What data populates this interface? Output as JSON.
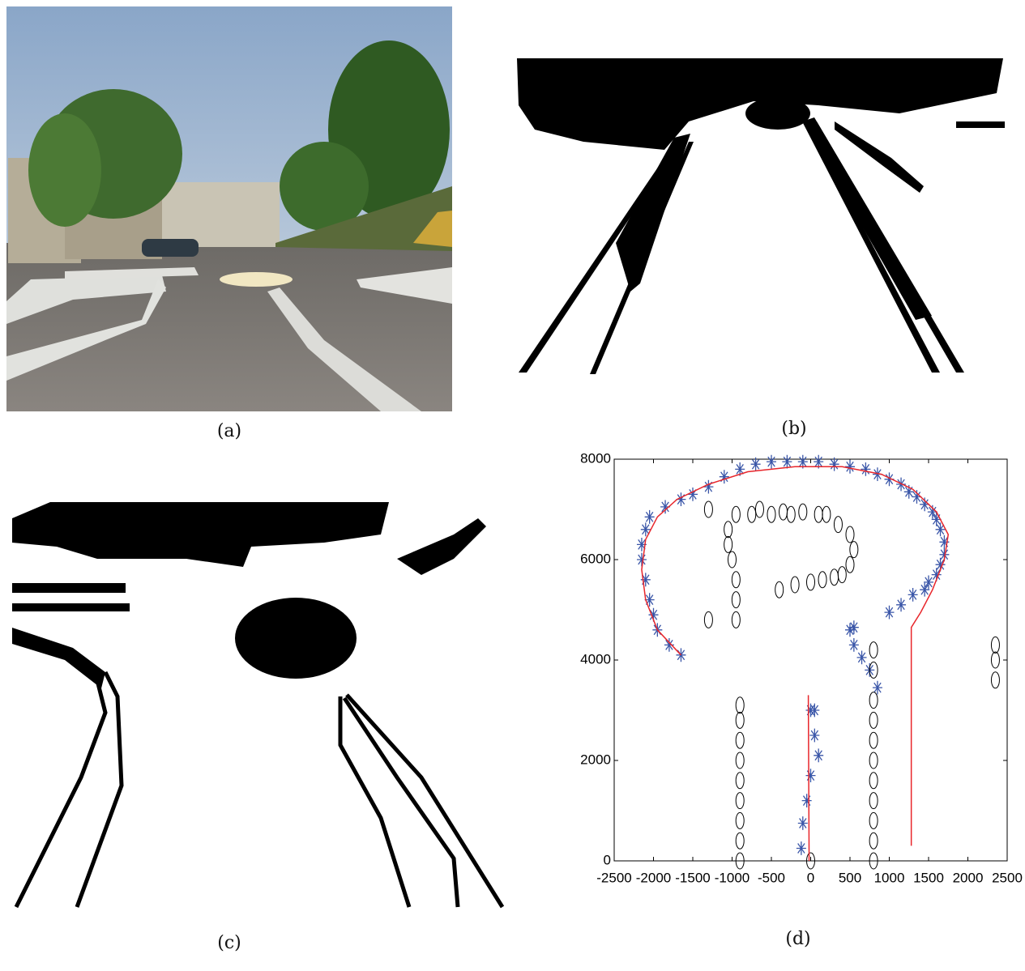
{
  "captions": [
    "(a)",
    "(b)",
    "(c)",
    "(d)"
  ],
  "chart_data": {
    "type": "scatter",
    "xlim": [
      -2500,
      2500
    ],
    "ylim": [
      0,
      8000
    ],
    "xticks": [
      -2500,
      -2000,
      -1500,
      -1000,
      -500,
      0,
      500,
      1000,
      1500,
      2000,
      2500
    ],
    "yticks": [
      0,
      2000,
      4000,
      6000,
      8000
    ],
    "series": [
      {
        "marker": "star",
        "color": "#3a56a8",
        "x": [
          -120,
          -100,
          -50,
          0,
          100,
          50,
          0,
          50,
          850,
          750,
          650,
          550,
          500,
          550,
          1000,
          1150,
          1300,
          1450,
          1500,
          1600,
          1650,
          1700,
          1700,
          1650,
          1600,
          1550,
          1450,
          1350,
          1250,
          1150,
          1000,
          850,
          700,
          500,
          300,
          100,
          -100,
          -300,
          -500,
          -700,
          -900,
          -1100,
          -1300,
          -1500,
          -1650,
          -1850,
          -2050,
          -2100,
          -2150,
          -2150,
          -2100,
          -2050,
          -2000,
          -1950,
          -1800,
          -1650
        ],
        "values": [
          250,
          750,
          1200,
          1700,
          2100,
          2500,
          3000,
          3000,
          3450,
          3800,
          4050,
          4300,
          4600,
          4650,
          4950,
          5100,
          5300,
          5400,
          5550,
          5700,
          5900,
          6100,
          6350,
          6600,
          6800,
          6950,
          7100,
          7250,
          7350,
          7500,
          7600,
          7700,
          7800,
          7850,
          7900,
          7950,
          7950,
          7950,
          7950,
          7900,
          7800,
          7650,
          7450,
          7300,
          7200,
          7050,
          6850,
          6600,
          6300,
          6000,
          5600,
          5200,
          4900,
          4600,
          4300,
          4100
        ]
      },
      {
        "marker": "ellipse",
        "color": "#000000",
        "x": [
          -900,
          -900,
          -900,
          -900,
          -900,
          -900,
          -900,
          -900,
          -900,
          800,
          800,
          800,
          800,
          800,
          800,
          800,
          800,
          800,
          800,
          800,
          2350,
          2350,
          2350,
          0,
          -1300,
          -950,
          -950,
          -950,
          -1000,
          -1050,
          -1050,
          -950,
          -750,
          -650,
          -500,
          -350,
          -250,
          -100,
          100,
          200,
          350,
          500,
          550,
          500,
          400,
          300,
          150,
          0,
          -200,
          -400,
          -1300
        ],
        "values": [
          0,
          400,
          800,
          1200,
          1600,
          2000,
          2400,
          2800,
          3100,
          0,
          400,
          800,
          1200,
          1600,
          2000,
          2400,
          2800,
          3200,
          3800,
          4200,
          3600,
          4000,
          4300,
          0,
          4800,
          4800,
          5200,
          5600,
          6000,
          6300,
          6600,
          6900,
          6900,
          7000,
          6900,
          6950,
          6900,
          6950,
          6900,
          6900,
          6700,
          6500,
          6200,
          5900,
          5700,
          5650,
          5600,
          5550,
          5500,
          5400,
          7000
        ]
      },
      {
        "marker": "line",
        "color": "#e8262b",
        "x": [
          -30,
          -20,
          null,
          -1650,
          -1950,
          -2100,
          -2150,
          -2100,
          -1950,
          -1700,
          -1300,
          -800,
          -200,
          400,
          900,
          1300,
          1600,
          1750,
          1700,
          1550,
          1400,
          1280,
          1280
        ],
        "values": [
          3300,
          0,
          null,
          4100,
          4600,
          5200,
          5800,
          6400,
          6850,
          7200,
          7500,
          7750,
          7850,
          7850,
          7700,
          7400,
          6950,
          6500,
          6000,
          5400,
          4950,
          4650,
          300
        ]
      }
    ]
  }
}
